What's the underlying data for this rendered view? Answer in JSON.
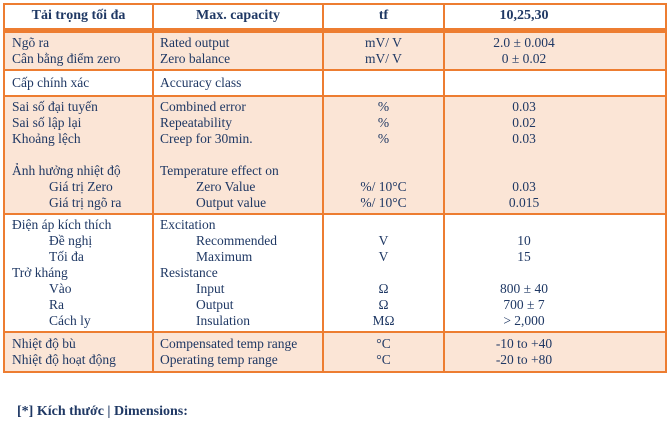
{
  "colors": {
    "border_orange": "#ED7D31",
    "row_peach": "#FBE5D6",
    "text_navy": "#1F3864",
    "page_background": "#ffffff"
  },
  "table": {
    "header": {
      "vn": "Tải trọng tối đa",
      "en": "Max. capacity",
      "unit": "tf",
      "value": "10,25,30"
    },
    "groups": [
      {
        "bg": "peach",
        "rows": [
          {
            "vn": "Ngõ ra",
            "en": "Rated output",
            "unit": "mV/ V",
            "value": "2.0 ± 0.004"
          },
          {
            "vn": "Cân bằng điểm zero",
            "en": "Zero balance",
            "unit": "mV/ V",
            "value": "0 ± 0.02"
          }
        ]
      },
      {
        "bg": "white",
        "rows": [
          {
            "vn": "Cấp chính xác",
            "en": "Accuracy class",
            "unit": "",
            "value": ""
          }
        ]
      },
      {
        "bg": "peach",
        "rows": [
          {
            "vn": "Sai số đại tuyến",
            "en": "Combined error",
            "unit": "%",
            "value": "0.03"
          },
          {
            "vn": "Sai số lập lại",
            "en": "Repeatability",
            "unit": "%",
            "value": "0.02"
          },
          {
            "vn": "Khoảng lệch",
            "en": "Creep for 30min.",
            "unit": "%",
            "value": "0.03"
          },
          {
            "vn": "",
            "en": "",
            "unit": "",
            "value": ""
          },
          {
            "vn": "Ảnh hưởng nhiệt độ",
            "en": "Temperature effect on",
            "unit": "",
            "value": ""
          },
          {
            "vn": "Giá trị Zero",
            "en": "Zero Value",
            "unit": "%/ 10°C",
            "value": "0.03"
          },
          {
            "vn": "Giá trị ngõ ra",
            "en": "Output value",
            "unit": "%/ 10°C",
            "value": "0.015"
          }
        ]
      },
      {
        "bg": "white",
        "rows": [
          {
            "vn": "Điện áp kích thích",
            "en": "Excitation",
            "unit": "",
            "value": ""
          },
          {
            "vn": "Đề nghị",
            "en": "Recommended",
            "unit": "V",
            "value": "10"
          },
          {
            "vn": "Tối đa",
            "en": "Maximum",
            "unit": "V",
            "value": "15"
          },
          {
            "vn": "Trở kháng",
            "en": "Resistance",
            "unit": "",
            "value": ""
          },
          {
            "vn": "Vào",
            "en": "Input",
            "unit": "Ω",
            "value": "800 ± 40"
          },
          {
            "vn": "Ra",
            "en": "Output",
            "unit": "Ω",
            "value": "700 ± 7"
          },
          {
            "vn": "Cách ly",
            "en": "Insulation",
            "unit": "MΩ",
            "value": "> 2,000"
          }
        ]
      },
      {
        "bg": "peach",
        "rows": [
          {
            "vn": "Nhiệt độ bù",
            "en": "Compensated temp range",
            "unit": "°C",
            "value": "-10 to +40"
          },
          {
            "vn": "Nhiệt độ hoạt động",
            "en": "Operating temp range",
            "unit": "°C",
            "value": "-20 to +80"
          }
        ]
      }
    ]
  },
  "footer": {
    "note": "[*] Kích thước | Dimensions:"
  }
}
